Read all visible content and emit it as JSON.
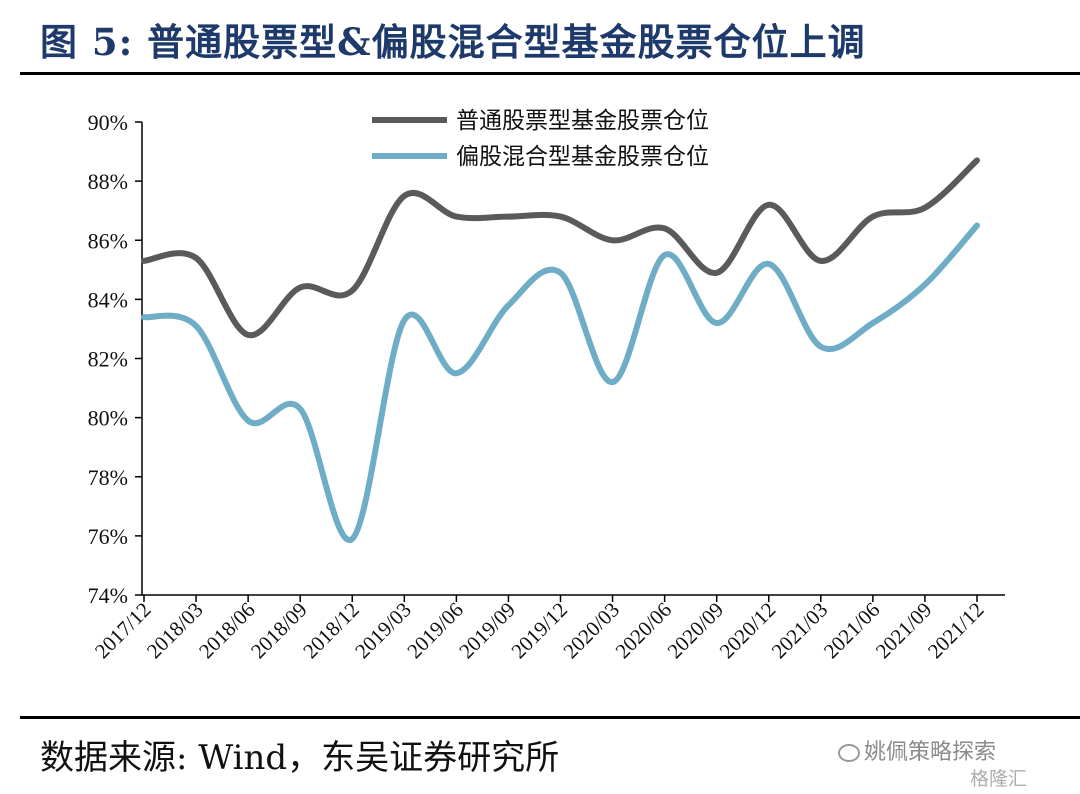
{
  "header": {
    "title": "图 5:  普通股票型&偏股混合型基金股票仓位上调"
  },
  "footer": {
    "source": "数据来源:  Wind，东吴证券研究所"
  },
  "watermark": {
    "account": "姚佩策略探索",
    "site": "格隆汇"
  },
  "colors": {
    "title": "#1d3a6b",
    "series1": "#5a5a5c",
    "series2": "#6fadc7"
  },
  "chart_data": {
    "type": "line",
    "title": "普通股票型&偏股混合型基金股票仓位上调",
    "xlabel": "",
    "ylabel": "",
    "ylim": [
      74,
      90
    ],
    "y_ticks": [
      "74%",
      "76%",
      "78%",
      "80%",
      "82%",
      "84%",
      "86%",
      "88%",
      "90%"
    ],
    "y_tick_values": [
      74,
      76,
      78,
      80,
      82,
      84,
      86,
      88,
      90
    ],
    "categories": [
      "2017/12",
      "2018/03",
      "2018/06",
      "2018/09",
      "2018/12",
      "2019/03",
      "2019/06",
      "2019/09",
      "2019/12",
      "2020/03",
      "2020/06",
      "2020/09",
      "2020/12",
      "2021/03",
      "2021/06",
      "2021/09",
      "2021/12"
    ],
    "legend_position": "top",
    "grid": false,
    "series": [
      {
        "name": "普通股票型基金股票仓位",
        "color": "#5a5a5c",
        "values": [
          85.3,
          85.4,
          82.8,
          84.4,
          84.3,
          87.5,
          86.8,
          86.8,
          86.8,
          86.0,
          86.4,
          84.9,
          87.2,
          85.3,
          86.8,
          87.1,
          88.7
        ]
      },
      {
        "name": "偏股混合型基金股票仓位",
        "color": "#6fadc7",
        "values": [
          83.4,
          83.1,
          79.9,
          80.3,
          75.9,
          83.3,
          81.5,
          83.8,
          84.9,
          81.2,
          85.5,
          83.2,
          85.2,
          82.4,
          83.2,
          84.5,
          86.5
        ]
      }
    ]
  }
}
